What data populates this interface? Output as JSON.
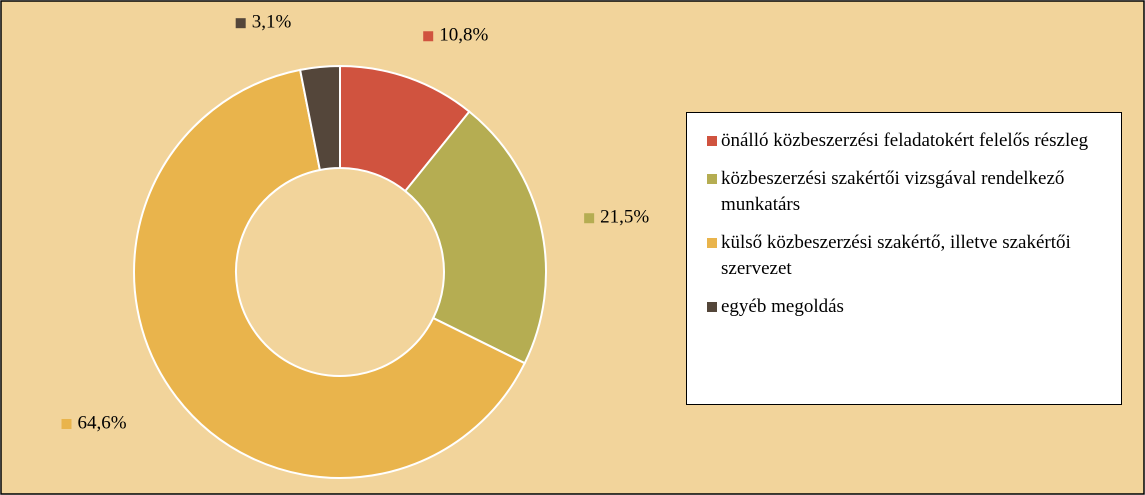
{
  "chart_data": {
    "type": "donut",
    "categories": [
      "önálló közbeszerzési feladatokért felelős részleg",
      "közbeszerzési szakértői vizsgával rendelkező munkatárs",
      "külső közbeszerzési szakértő, illetve szakértői szervezet",
      "egyéb megoldás"
    ],
    "values": [
      10.8,
      21.5,
      64.6,
      3.1
    ],
    "value_labels": [
      "10,8%",
      "21,5%",
      "64,6%",
      "3,1%"
    ],
    "colors": [
      "#d0533f",
      "#b5ad52",
      "#e9b44c",
      "#54463a"
    ],
    "legend": "right"
  }
}
